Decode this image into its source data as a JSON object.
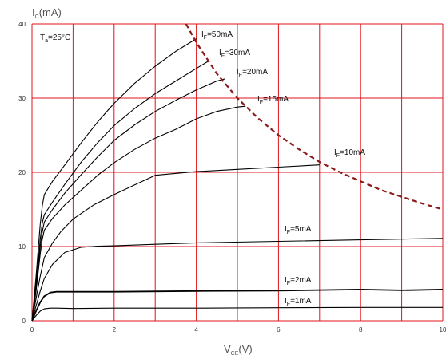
{
  "chart_data": {
    "type": "line",
    "xlabel": "V_CE(V)",
    "ylabel": "I_C(mA)",
    "xlim": [
      0,
      10
    ],
    "ylim": [
      0,
      40
    ],
    "x_ticks": [
      0,
      2,
      4,
      6,
      8,
      10
    ],
    "y_ticks": [
      0,
      10,
      20,
      30,
      40
    ],
    "grid": true,
    "grid_step": {
      "x": 1,
      "y": 10
    },
    "colors": {
      "grid": "#e0141c",
      "curve": "#000000",
      "limit": "#8b1a1a"
    },
    "annotation": "T_a=25°C",
    "series": [
      {
        "name": "I_F=50mA",
        "x": [
          0,
          0.1,
          0.2,
          0.25,
          0.3,
          0.5,
          0.8,
          1.2,
          1.6,
          2.0,
          2.5,
          3.0,
          3.5,
          4.0
        ],
        "y": [
          0,
          6,
          13,
          15.5,
          17,
          18.8,
          21,
          24,
          26.8,
          29.3,
          32,
          34.3,
          36.3,
          38
        ]
      },
      {
        "name": "I_F=30mA",
        "x": [
          0,
          0.1,
          0.2,
          0.25,
          0.3,
          0.5,
          0.8,
          1.2,
          1.6,
          2.0,
          2.5,
          3.0,
          3.5,
          4.0,
          4.3
        ],
        "y": [
          0,
          5,
          11,
          13.2,
          14.3,
          16,
          18.4,
          21.4,
          24,
          26.3,
          28.6,
          30.6,
          32.3,
          34,
          35
        ]
      },
      {
        "name": "I_F=20mA",
        "x": [
          0,
          0.1,
          0.2,
          0.25,
          0.3,
          0.5,
          0.8,
          1.2,
          1.6,
          2.0,
          2.5,
          3.0,
          3.5,
          4.0,
          4.5,
          4.7
        ],
        "y": [
          0,
          4.5,
          10,
          12,
          13.3,
          15,
          17.2,
          19.7,
          22.1,
          24.3,
          26.4,
          28.2,
          29.7,
          31.1,
          32.3,
          32.6
        ]
      },
      {
        "name": "I_F=15mA",
        "x": [
          0,
          0.1,
          0.2,
          0.25,
          0.3,
          0.5,
          0.8,
          1.2,
          1.6,
          2.0,
          2.5,
          3.0,
          3.5,
          4.0,
          4.5,
          5.0,
          5.2
        ],
        "y": [
          0,
          4,
          9,
          11,
          12.2,
          13.8,
          15.6,
          17.6,
          19.6,
          21.3,
          23.1,
          24.6,
          25.8,
          27.2,
          28.2,
          28.8,
          28.9
        ]
      },
      {
        "name": "I_F=10mA",
        "x": [
          0,
          0.1,
          0.2,
          0.3,
          0.5,
          0.7,
          1.0,
          1.5,
          2.0,
          2.5,
          3.0,
          4.0,
          5.0,
          6.0,
          7.0
        ],
        "y": [
          0,
          3,
          6,
          8.5,
          10.5,
          12,
          13.7,
          15.6,
          17,
          18.3,
          19.6,
          20.1,
          20.4,
          20.7,
          21
        ]
      },
      {
        "name": "I_F=5mA",
        "x": [
          0,
          0.1,
          0.2,
          0.3,
          0.5,
          0.8,
          1.2,
          1.6,
          2.0,
          3.0,
          4.0,
          6.0,
          8.0,
          10.0
        ],
        "y": [
          0,
          2,
          4,
          5.7,
          7.6,
          9.2,
          9.9,
          10.05,
          10.1,
          10.3,
          10.5,
          10.7,
          10.9,
          11.1
        ]
      },
      {
        "name": "I_F=2mA",
        "x": [
          0,
          0.1,
          0.2,
          0.3,
          0.45,
          0.6,
          1.0,
          2.0,
          4.0,
          6.0,
          8.0,
          9.0,
          10.0
        ],
        "y": [
          0,
          1.3,
          2.5,
          3.3,
          3.8,
          3.9,
          3.9,
          3.9,
          4.0,
          4.05,
          4.2,
          4.1,
          4.2
        ]
      },
      {
        "name": "I_F=1mA",
        "x": [
          0,
          0.1,
          0.2,
          0.3,
          0.45,
          0.6,
          1.0,
          2.0,
          4.0,
          6.0,
          8.0,
          10.0
        ],
        "y": [
          0,
          0.7,
          1.3,
          1.6,
          1.7,
          1.7,
          1.65,
          1.7,
          1.7,
          1.75,
          1.8,
          1.8
        ]
      }
    ],
    "limit_curve": {
      "x": [
        3.75,
        4,
        4.5,
        5,
        5.5,
        6,
        6.5,
        7,
        7.5,
        8,
        8.5,
        9,
        9.5,
        10
      ],
      "y": [
        40,
        37.5,
        33.3,
        30,
        27.3,
        25,
        23.1,
        21.4,
        20,
        18.8,
        17.6,
        16.7,
        15.8,
        15
      ]
    }
  }
}
